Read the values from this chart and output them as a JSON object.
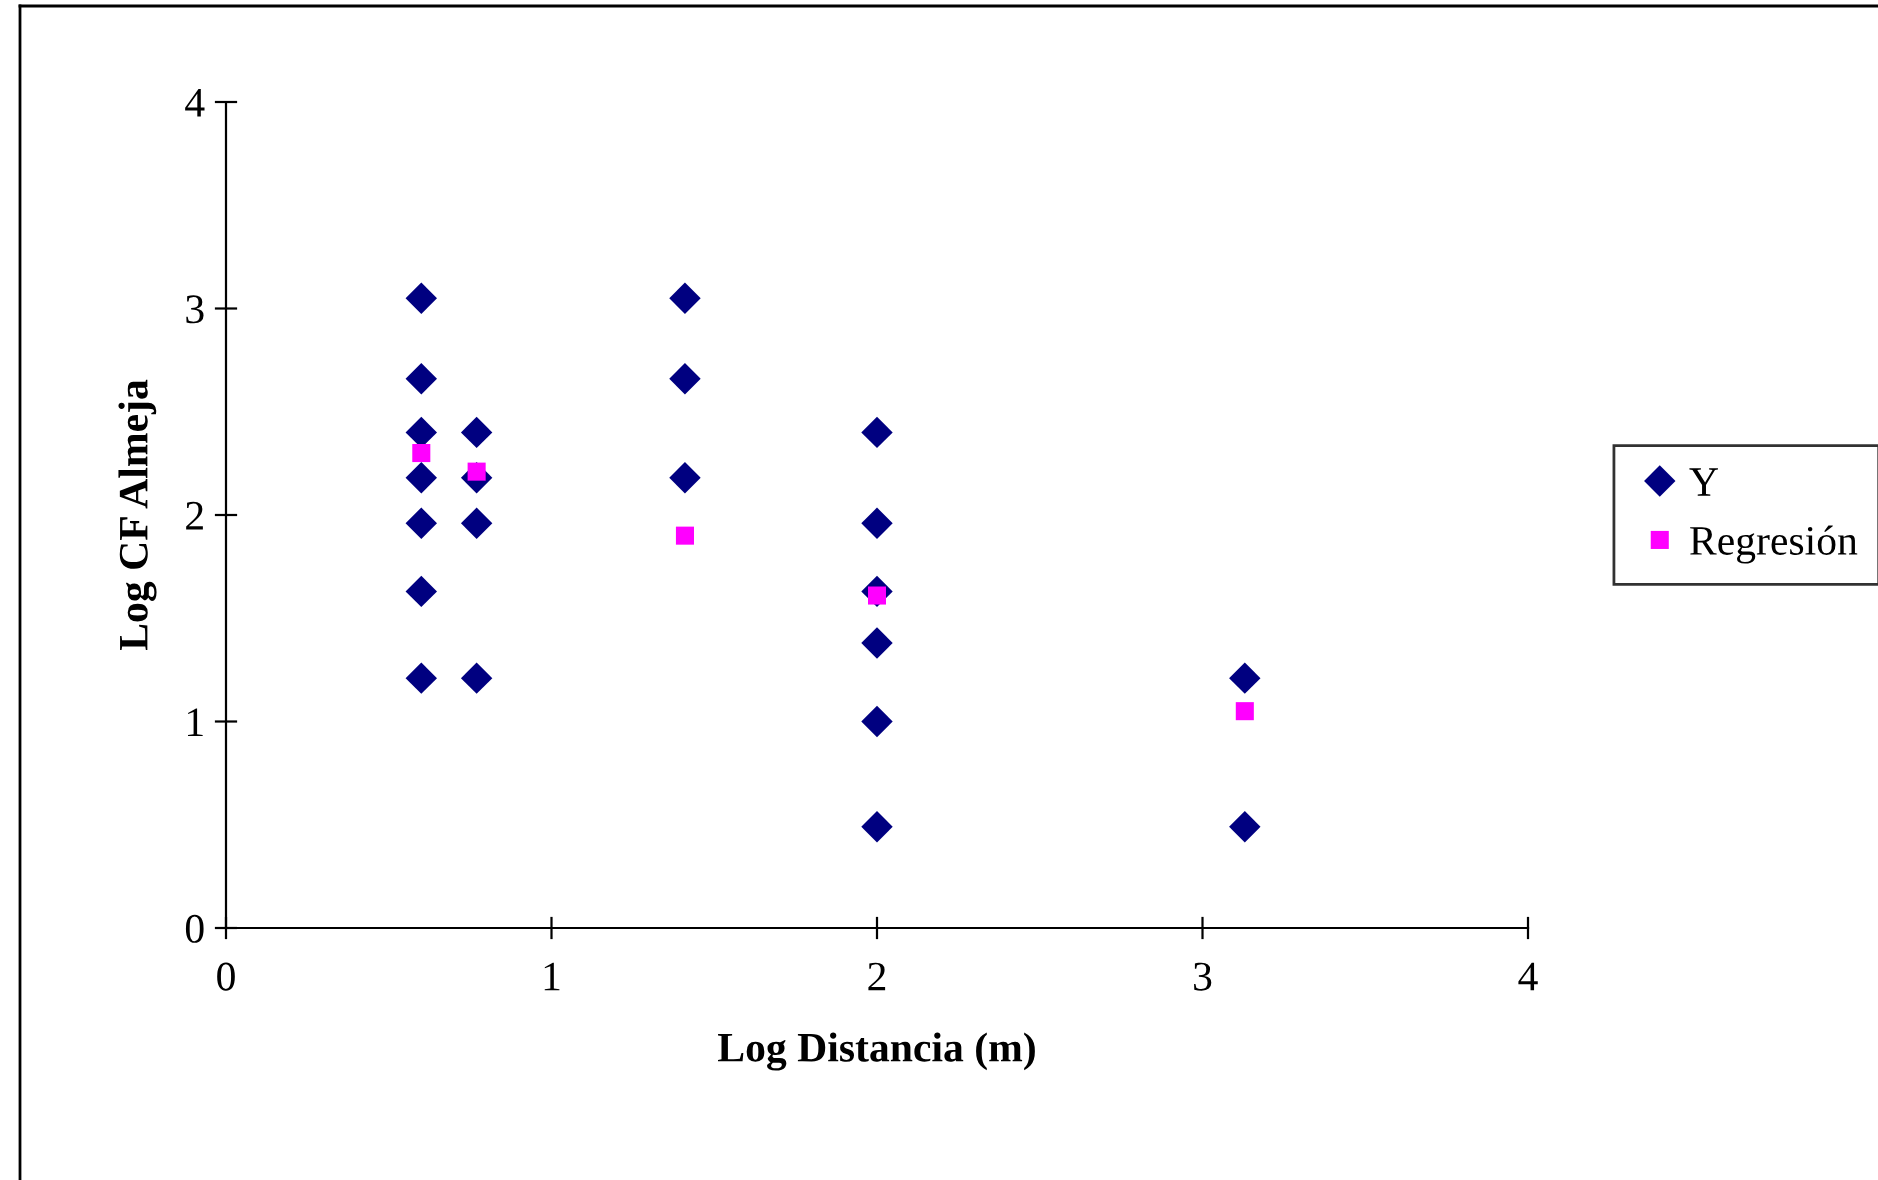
{
  "chart_data": {
    "type": "scatter",
    "xlabel": "Log Distancia (m)",
    "ylabel": "Log CF Almeja",
    "xlim": [
      0,
      4
    ],
    "ylim": [
      0,
      4
    ],
    "xticks": [
      0,
      1,
      2,
      3,
      4
    ],
    "yticks": [
      0,
      1,
      2,
      3,
      4
    ],
    "grid": false,
    "legend": "right",
    "series": [
      {
        "name": "Y",
        "color": "#000080",
        "marker": "diamond",
        "x": [
          0.6,
          0.6,
          0.6,
          0.6,
          0.6,
          0.6,
          0.6,
          0.77,
          0.77,
          0.77,
          0.77,
          1.41,
          1.41,
          1.41,
          2.0,
          2.0,
          2.0,
          2.0,
          2.0,
          2.0,
          3.13,
          3.13
        ],
        "values": [
          3.05,
          2.66,
          2.4,
          2.18,
          1.96,
          1.63,
          1.21,
          2.4,
          2.18,
          1.96,
          1.21,
          3.05,
          2.66,
          2.18,
          2.4,
          1.96,
          1.63,
          1.38,
          1.0,
          0.49,
          1.21,
          0.49
        ]
      },
      {
        "name": "Regresión",
        "color": "#ff00ff",
        "marker": "square",
        "x": [
          0.6,
          0.77,
          1.41,
          2.0,
          3.13
        ],
        "values": [
          2.3,
          2.21,
          1.9,
          1.61,
          1.05
        ]
      }
    ]
  }
}
